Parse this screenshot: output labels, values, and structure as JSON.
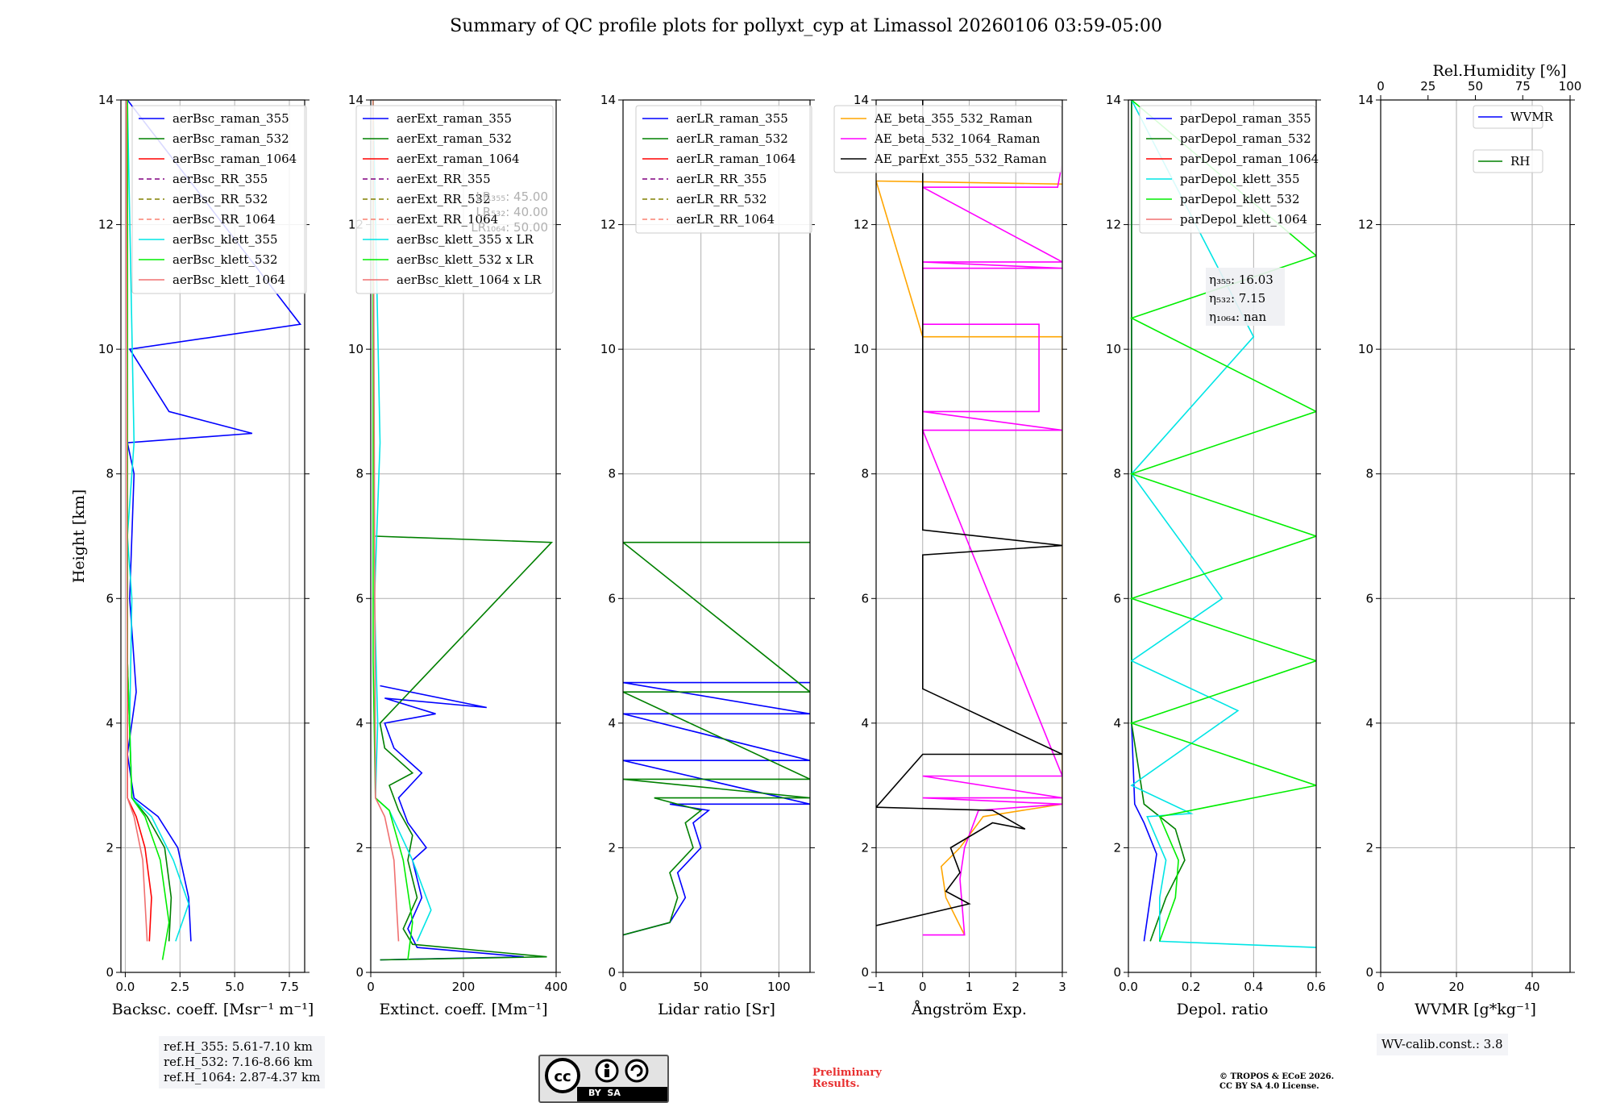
{
  "chart_data": [
    {
      "type": "line",
      "title": "Summary of QC profile plots for pollyxt_cyp at Limassol 20260106 03:59-05:00",
      "xlabel": "Backsc. coeff. [Msr⁻¹ m⁻¹]",
      "ylabel": "Height [km]",
      "xlim": [
        -0.2,
        8.2
      ],
      "ylim": [
        0,
        14
      ],
      "xticks": [
        0,
        2.5,
        5.0,
        7.5
      ],
      "xticklabels": [
        "0.0",
        "2.5",
        "5.0",
        "7.5"
      ],
      "yticks": [
        0,
        2,
        4,
        6,
        8,
        10,
        12,
        14
      ],
      "grid": true,
      "legend": "top-right",
      "series": [
        {
          "name": "aerBsc_raman_355",
          "color": "#0000ff",
          "style": "solid",
          "x": [
            3.0,
            2.9,
            2.4,
            1.5,
            0.4,
            0.1,
            0.5,
            0.2,
            0.4,
            0.1,
            5.8,
            2.0,
            0.2,
            8.0,
            0.1
          ],
          "y": [
            0.5,
            1.2,
            2.0,
            2.5,
            2.8,
            3.5,
            4.5,
            6.0,
            8.0,
            8.5,
            8.65,
            9.0,
            10.0,
            10.4,
            14.0
          ]
        },
        {
          "name": "aerBsc_raman_532",
          "color": "#008000",
          "style": "solid",
          "x": [
            2.0,
            2.1,
            1.8,
            1.0,
            0.3,
            0.1,
            0.1
          ],
          "y": [
            0.5,
            1.2,
            2.0,
            2.5,
            2.8,
            5.0,
            14.0
          ]
        },
        {
          "name": "aerBsc_raman_1064",
          "color": "#ff0000",
          "style": "solid",
          "x": [
            1.1,
            1.2,
            0.9,
            0.5,
            0.1,
            0.05
          ],
          "y": [
            0.5,
            1.2,
            2.0,
            2.5,
            2.8,
            14.0
          ]
        },
        {
          "name": "aerBsc_RR_355",
          "color": "#800080",
          "style": "dashed",
          "x": [],
          "y": []
        },
        {
          "name": "aerBsc_RR_532",
          "color": "#808000",
          "style": "dashed",
          "x": [],
          "y": []
        },
        {
          "name": "aerBsc_RR_1064",
          "color": "#fa8072",
          "style": "dashed",
          "x": [],
          "y": []
        },
        {
          "name": "aerBsc_klett_355",
          "color": "#00e5e5",
          "style": "solid",
          "x": [
            2.3,
            2.9,
            2.2,
            1.2,
            0.3,
            0.2,
            0.3,
            0.1,
            0.4,
            0.1
          ],
          "y": [
            0.5,
            1.1,
            1.8,
            2.5,
            2.8,
            4.0,
            6.0,
            7.0,
            8.5,
            14.0
          ]
        },
        {
          "name": "aerBsc_klett_532",
          "color": "#00ee00",
          "style": "solid",
          "x": [
            1.7,
            2.0,
            1.6,
            0.9,
            0.3,
            0.1,
            0.1
          ],
          "y": [
            0.2,
            0.8,
            1.8,
            2.5,
            2.8,
            5.0,
            14.0
          ]
        },
        {
          "name": "aerBsc_klett_1064",
          "color": "#f07070",
          "style": "solid",
          "x": [
            1.0,
            0.8,
            0.4,
            0.1,
            0.05
          ],
          "y": [
            0.5,
            1.8,
            2.5,
            2.8,
            14.0
          ]
        }
      ]
    },
    {
      "type": "line",
      "xlabel": "Extinct. coeff. [Mm⁻¹]",
      "xlim": [
        0,
        400
      ],
      "ylim": [
        0,
        14
      ],
      "xticks": [
        0,
        200,
        400
      ],
      "xticklabels": [
        "0",
        "200",
        "400"
      ],
      "yticks": [
        0,
        2,
        4,
        6,
        8,
        10,
        12,
        14
      ],
      "grid": true,
      "legend": "top-right",
      "annotation": [
        "LR₃₅₅: 45.00",
        "LR₅₃₂: 40.00",
        "LR₁₀₆₄: 50.00"
      ],
      "series": [
        {
          "name": "aerExt_raman_355",
          "color": "#0000ff",
          "style": "solid",
          "x": [
            20,
            330,
            100,
            80,
            110,
            90,
            120,
            80,
            60,
            110,
            50,
            30,
            140,
            30,
            250,
            20
          ],
          "y": [
            0.2,
            0.25,
            0.4,
            0.7,
            1.2,
            1.8,
            2.0,
            2.4,
            2.8,
            3.2,
            3.6,
            4.0,
            4.15,
            4.4,
            4.25,
            4.6
          ]
        },
        {
          "name": "aerExt_raman_532",
          "color": "#008000",
          "style": "solid",
          "x": [
            20,
            380,
            90,
            70,
            100,
            80,
            90,
            60,
            40,
            90,
            30,
            20,
            390,
            10
          ],
          "y": [
            0.2,
            0.25,
            0.45,
            0.7,
            1.2,
            1.8,
            2.2,
            2.6,
            3.0,
            3.2,
            3.6,
            4.0,
            6.9,
            7.0
          ]
        },
        {
          "name": "aerExt_raman_1064",
          "color": "#ff0000",
          "style": "solid",
          "x": [],
          "y": []
        },
        {
          "name": "aerExt_RR_355",
          "color": "#800080",
          "style": "dashed",
          "x": [],
          "y": []
        },
        {
          "name": "aerExt_RR_532",
          "color": "#808000",
          "style": "dashed",
          "x": [],
          "y": []
        },
        {
          "name": "aerExt_RR_1064",
          "color": "#fa8072",
          "style": "dashed",
          "x": [],
          "y": []
        },
        {
          "name": "aerBsc_klett_355 x LR",
          "color": "#00e5e5",
          "style": "solid",
          "x": [
            100,
            130,
            90,
            40,
            10,
            15,
            8,
            20,
            5
          ],
          "y": [
            0.5,
            1.0,
            1.8,
            2.6,
            2.8,
            4.0,
            6.0,
            8.5,
            14.0
          ]
        },
        {
          "name": "aerBsc_klett_532 x LR",
          "color": "#00ee00",
          "style": "solid",
          "x": [
            80,
            90,
            70,
            40,
            10,
            5,
            5
          ],
          "y": [
            0.2,
            0.8,
            1.8,
            2.6,
            2.8,
            5.0,
            14.0
          ]
        },
        {
          "name": "aerBsc_klett_1064 x LR",
          "color": "#f07070",
          "style": "solid",
          "x": [
            60,
            50,
            30,
            10,
            5
          ],
          "y": [
            0.5,
            1.8,
            2.5,
            2.8,
            14.0
          ]
        }
      ]
    },
    {
      "type": "line",
      "xlabel": "Lidar ratio [Sr]",
      "xlim": [
        0,
        120
      ],
      "ylim": [
        0,
        14
      ],
      "xticks": [
        0,
        50,
        100
      ],
      "xticklabels": [
        "0",
        "50",
        "100"
      ],
      "yticks": [
        0,
        2,
        4,
        6,
        8,
        10,
        12,
        14
      ],
      "grid": true,
      "legend": "top-right",
      "series": [
        {
          "name": "aerLR_raman_355",
          "color": "#0000ff",
          "style": "solid",
          "x": [
            0,
            30,
            40,
            35,
            50,
            45,
            55,
            30,
            120,
            0,
            120,
            0,
            120,
            0,
            120
          ],
          "y": [
            0.6,
            0.8,
            1.2,
            1.6,
            2.0,
            2.4,
            2.6,
            2.7,
            2.7,
            3.4,
            3.4,
            4.15,
            4.15,
            4.65,
            4.65
          ]
        },
        {
          "name": "aerLR_raman_532",
          "color": "#008000",
          "style": "solid",
          "x": [
            0,
            30,
            35,
            30,
            45,
            40,
            50,
            20,
            120,
            0,
            120,
            0,
            120,
            0,
            120
          ],
          "y": [
            0.6,
            0.8,
            1.2,
            1.6,
            2.0,
            2.4,
            2.6,
            2.8,
            2.8,
            3.1,
            3.1,
            4.5,
            4.5,
            6.9,
            6.9
          ]
        },
        {
          "name": "aerLR_raman_1064",
          "color": "#ff0000",
          "style": "solid",
          "x": [],
          "y": []
        },
        {
          "name": "aerLR_RR_355",
          "color": "#800080",
          "style": "dashed",
          "x": [],
          "y": []
        },
        {
          "name": "aerLR_RR_532",
          "color": "#808000",
          "style": "dashed",
          "x": [],
          "y": []
        },
        {
          "name": "aerLR_RR_1064",
          "color": "#fa8072",
          "style": "dashed",
          "x": [],
          "y": []
        }
      ]
    },
    {
      "type": "line",
      "xlabel": "Ångström Exp.",
      "xlim": [
        -1,
        3
      ],
      "ylim": [
        0,
        14
      ],
      "xticks": [
        -1,
        0,
        1,
        2,
        3
      ],
      "xticklabels": [
        "−1",
        "0",
        "1",
        "2",
        "3"
      ],
      "yticks": [
        0,
        2,
        4,
        6,
        8,
        10,
        12,
        14
      ],
      "grid": true,
      "legend": "top-left",
      "series": [
        {
          "name": "AE_beta_355_532_Raman",
          "color": "#ffa500",
          "style": "solid",
          "x": [
            0.9,
            0.5,
            0.4,
            0.8,
            1.3,
            3.0,
            3.0,
            0.0,
            -1.0,
            3.0
          ],
          "y": [
            0.6,
            1.2,
            1.7,
            2.0,
            2.5,
            2.7,
            10.2,
            10.2,
            12.7,
            12.65
          ]
        },
        {
          "name": "AE_beta_532_1064_Raman",
          "color": "#ff00ff",
          "style": "solid",
          "x": [
            0.0,
            0.9,
            0.8,
            0.9,
            1.2,
            3.0,
            0.0,
            3.0,
            0.0,
            3.0,
            0.0,
            3.0,
            0.0,
            2.5,
            2.5,
            0.0,
            0.0,
            3.0,
            0.0,
            3.0,
            0.0,
            2.9,
            3.0
          ],
          "y": [
            0.6,
            0.6,
            1.5,
            2.0,
            2.6,
            2.7,
            2.8,
            2.8,
            3.15,
            3.15,
            8.7,
            8.7,
            9.0,
            9.0,
            10.4,
            10.4,
            11.3,
            11.3,
            11.4,
            11.4,
            12.6,
            12.6,
            13.0
          ]
        },
        {
          "name": "AE_parExt_355_532_Raman",
          "color": "#000000",
          "style": "solid",
          "x": [
            -1.0,
            1.0,
            0.5,
            0.8,
            0.6,
            1.5,
            2.2,
            1.5,
            -1.0,
            0.0,
            3.0,
            0.0,
            0.0,
            3.0,
            0.0,
            0.0
          ],
          "y": [
            0.75,
            1.1,
            1.3,
            1.6,
            2.0,
            2.4,
            2.3,
            2.6,
            2.65,
            3.5,
            3.5,
            4.55,
            6.7,
            6.85,
            7.1,
            14.0
          ]
        }
      ]
    },
    {
      "type": "line",
      "xlabel": "Depol. ratio",
      "xlim": [
        0,
        0.6
      ],
      "ylim": [
        0,
        14
      ],
      "xticks": [
        0,
        0.2,
        0.4,
        0.6
      ],
      "xticklabels": [
        "0.0",
        "0.2",
        "0.4",
        "0.6"
      ],
      "yticks": [
        0,
        2,
        4,
        6,
        8,
        10,
        12,
        14
      ],
      "grid": true,
      "legend": "top-right",
      "annotation": [
        "η₃₅₅: 16.03",
        "η₅₃₂: 7.15",
        "η₁₀₆₄: nan"
      ],
      "series": [
        {
          "name": "parDepol_raman_355",
          "color": "#0000ff",
          "style": "solid",
          "x": [
            0.05,
            0.07,
            0.09,
            0.05,
            0.02,
            0.01,
            0.01
          ],
          "y": [
            0.5,
            1.2,
            1.9,
            2.4,
            2.7,
            4.0,
            14.0
          ]
        },
        {
          "name": "parDepol_raman_532",
          "color": "#008000",
          "style": "solid",
          "x": [
            0.07,
            0.12,
            0.18,
            0.15,
            0.05,
            0.01,
            0.01
          ],
          "y": [
            0.5,
            1.2,
            1.8,
            2.3,
            2.7,
            4.0,
            14.0
          ]
        },
        {
          "name": "parDepol_raman_1064",
          "color": "#ff0000",
          "style": "solid",
          "x": [],
          "y": []
        },
        {
          "name": "parDepol_klett_355",
          "color": "#00e5e5",
          "style": "solid",
          "x": [
            0.6,
            0.1,
            0.1,
            0.12,
            0.06,
            0.2,
            0.01,
            0.35,
            0.01,
            0.3,
            0.01,
            0.4,
            0.01
          ],
          "y": [
            0.4,
            0.5,
            1.2,
            1.8,
            2.5,
            2.55,
            3.0,
            4.2,
            5.0,
            6.0,
            8.0,
            10.2,
            14.0
          ]
        },
        {
          "name": "parDepol_klett_532",
          "color": "#00ee00",
          "style": "solid",
          "x": [
            0.1,
            0.15,
            0.16,
            0.1,
            0.6,
            0.01,
            0.6,
            0.01,
            0.6,
            0.01,
            0.6,
            0.01,
            0.6,
            0.01
          ],
          "y": [
            0.5,
            1.2,
            1.8,
            2.5,
            3.0,
            4.0,
            5.0,
            6.0,
            7.0,
            8.0,
            9.0,
            10.5,
            11.5,
            14.0
          ]
        },
        {
          "name": "parDepol_klett_1064",
          "color": "#f07070",
          "style": "solid",
          "x": [],
          "y": []
        }
      ]
    },
    {
      "type": "line",
      "xlabel": "WVMR [g*kg⁻¹]",
      "x2label": "Rel.Humidity [%]",
      "xlim": [
        0,
        50
      ],
      "x2lim": [
        0,
        100
      ],
      "ylim": [
        0,
        14
      ],
      "xticks": [
        0,
        20,
        40
      ],
      "xticklabels": [
        "0",
        "20",
        "40"
      ],
      "x2ticks": [
        0,
        25,
        50,
        75,
        100
      ],
      "x2ticklabels": [
        "0",
        "25",
        "50",
        "75",
        "100"
      ],
      "yticks": [
        0,
        2,
        4,
        6,
        8,
        10,
        12,
        14
      ],
      "grid": true,
      "legend": "top-right",
      "series": [
        {
          "name": "WVMR",
          "color": "#0000ff",
          "style": "solid",
          "x": [],
          "y": []
        },
        {
          "name": "RH",
          "color": "#008000",
          "style": "solid",
          "x": [],
          "y": []
        }
      ]
    }
  ],
  "ytick_labels": [
    "0",
    "2",
    "4",
    "6",
    "8",
    "10",
    "12",
    "14"
  ],
  "refh_lines": [
    "ref.H_355: 5.61-7.10 km",
    "ref.H_532: 7.16-8.66 km",
    "ref.H_1064: 2.87-4.37 km"
  ],
  "wv_calib": "WV-calib.const.: 3.8",
  "cc_license": "BY  SA",
  "preliminary": [
    "Preliminary",
    "Results."
  ],
  "copyright": [
    "© TROPOS & ECoE 2026.",
    "CC BY SA 4.0 License."
  ]
}
